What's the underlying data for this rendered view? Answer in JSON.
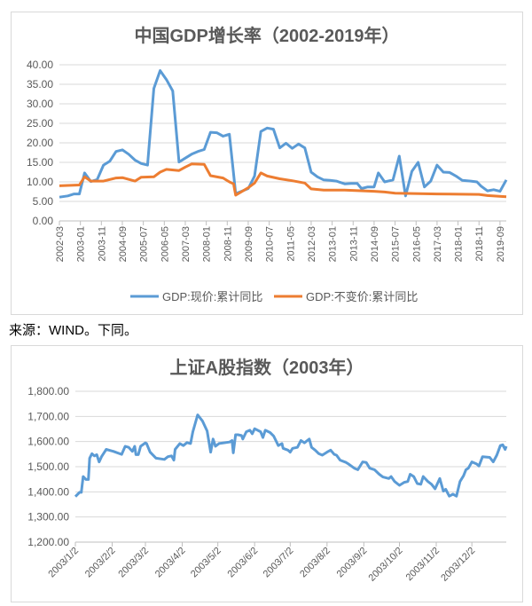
{
  "source_note": "来源：WIND。下同。",
  "chart_data": [
    {
      "type": "line",
      "title": "中国GDP增长率（2002-2019年）",
      "xlabel": "",
      "ylabel": "",
      "ylim": [
        0,
        40
      ],
      "yticks": [
        "0.00",
        "5.00",
        "10.00",
        "15.00",
        "20.00",
        "25.00",
        "30.00",
        "35.00",
        "40.00"
      ],
      "x_unit": "months since 2002-03",
      "xlim": [
        0,
        213
      ],
      "xtick_labels": [
        "2002-03",
        "2003-01",
        "2003-11",
        "2004-09",
        "2005-07",
        "2006-05",
        "2007-03",
        "2008-01",
        "2008-11",
        "2009-09",
        "2010-07",
        "2011-05",
        "2012-03",
        "2013-01",
        "2013-11",
        "2014-09",
        "2015-07",
        "2016-05",
        "2017-03",
        "2018-01",
        "2018-11",
        "2019-09"
      ],
      "grid": true,
      "legend": "bottom",
      "series": [
        {
          "name": "GDP:现价:累计同比",
          "color": "#5b9bd5",
          "points": [
            [
              0,
              6.1
            ],
            [
              4,
              6.4
            ],
            [
              7,
              6.9
            ],
            [
              9.5,
              6.9
            ],
            [
              12,
              12.3
            ],
            [
              15,
              10.1
            ],
            [
              18,
              10.6
            ],
            [
              21,
              14.3
            ],
            [
              24,
              15.3
            ],
            [
              27,
              17.8
            ],
            [
              30,
              18.2
            ],
            [
              33,
              17.1
            ],
            [
              36,
              15.6
            ],
            [
              39,
              14.7
            ],
            [
              42,
              14.3
            ],
            [
              45,
              33.9
            ],
            [
              48,
              38.5
            ],
            [
              51,
              36.2
            ],
            [
              54,
              33.3
            ],
            [
              57,
              15.1
            ],
            [
              60,
              16.1
            ],
            [
              63,
              17.1
            ],
            [
              66,
              17.8
            ],
            [
              69,
              18.3
            ],
            [
              72,
              22.7
            ],
            [
              75,
              22.6
            ],
            [
              78,
              21.7
            ],
            [
              81,
              22.2
            ],
            [
              84,
              7.0
            ],
            [
              86,
              7.4
            ],
            [
              90,
              8.3
            ],
            [
              93,
              11.5
            ],
            [
              96,
              22.9
            ],
            [
              99,
              23.8
            ],
            [
              102,
              23.5
            ],
            [
              105,
              18.7
            ],
            [
              108,
              19.9
            ],
            [
              111,
              18.6
            ],
            [
              114,
              19.7
            ],
            [
              117,
              18.7
            ],
            [
              120,
              12.5
            ],
            [
              123,
              11.3
            ],
            [
              126,
              10.5
            ],
            [
              129,
              10.4
            ],
            [
              132,
              10.2
            ],
            [
              136,
              9.5
            ],
            [
              139,
              9.6
            ],
            [
              142,
              9.6
            ],
            [
              144,
              8.3
            ],
            [
              147,
              8.7
            ],
            [
              150,
              8.7
            ],
            [
              152,
              12.3
            ],
            [
              155,
              10.0
            ],
            [
              159,
              10.5
            ],
            [
              162,
              16.6
            ],
            [
              165,
              6.4
            ],
            [
              168,
              12.7
            ],
            [
              171,
              15.0
            ],
            [
              174,
              8.7
            ],
            [
              177,
              10.2
            ],
            [
              180,
              14.3
            ],
            [
              183,
              12.5
            ],
            [
              186,
              12.4
            ],
            [
              189,
              11.5
            ],
            [
              192,
              10.4
            ],
            [
              196,
              10.2
            ],
            [
              199,
              10.0
            ],
            [
              201,
              8.9
            ],
            [
              204,
              7.7
            ],
            [
              207,
              8.0
            ],
            [
              210,
              7.6
            ],
            [
              213,
              10.5
            ]
          ]
        },
        {
          "name": "GDP:不变价:累计同比",
          "color": "#ed7d31",
          "points": [
            [
              0,
              9.0
            ],
            [
              9.5,
              9.2
            ],
            [
              12,
              11.3
            ],
            [
              15,
              10.2
            ],
            [
              21,
              10.2
            ],
            [
              27,
              11.0
            ],
            [
              30,
              11.1
            ],
            [
              36,
              10.2
            ],
            [
              39,
              11.2
            ],
            [
              45,
              11.3
            ],
            [
              48,
              12.5
            ],
            [
              51,
              13.2
            ],
            [
              57,
              12.9
            ],
            [
              60,
              13.8
            ],
            [
              63,
              14.6
            ],
            [
              69,
              14.5
            ],
            [
              72,
              11.6
            ],
            [
              78,
              11.0
            ],
            [
              81,
              10.0
            ],
            [
              83,
              9.5
            ],
            [
              84,
              6.6
            ],
            [
              90,
              8.5
            ],
            [
              93,
              9.7
            ],
            [
              96,
              12.3
            ],
            [
              99,
              11.5
            ],
            [
              105,
              10.8
            ],
            [
              111,
              10.3
            ],
            [
              117,
              9.7
            ],
            [
              120,
              8.2
            ],
            [
              126,
              7.9
            ],
            [
              136,
              7.9
            ],
            [
              150,
              7.6
            ],
            [
              155,
              7.4
            ],
            [
              160,
              7.1
            ],
            [
              180,
              6.9
            ],
            [
              200,
              6.8
            ],
            [
              204,
              6.5
            ],
            [
              213,
              6.2
            ]
          ]
        }
      ]
    },
    {
      "type": "line",
      "title": "上证A股指数（2003年）",
      "xlabel": "",
      "ylabel": "",
      "ylim": [
        1200,
        1800
      ],
      "yticks": [
        "1,200.00",
        "1,300.00",
        "1,400.00",
        "1,500.00",
        "1,600.00",
        "1,700.00",
        "1,800.00"
      ],
      "x_unit": "days since 2003-01-02",
      "xlim": [
        0,
        363
      ],
      "xtick_labels": [
        "2003/1/2",
        "2003/2/2",
        "2003/3/2",
        "2003/4/2",
        "2003/5/2",
        "2003/6/2",
        "2003/7/2",
        "2003/8/2",
        "2003/9/2",
        "2003/10/2",
        "2003/11/2",
        "2003/12/2"
      ],
      "xtick_values": [
        0,
        31,
        59,
        90,
        120,
        151,
        181,
        212,
        243,
        273,
        304,
        334
      ],
      "grid": true,
      "legend": "none",
      "series": [
        {
          "name": "上证A股指数",
          "color": "#5b9bd5",
          "points": [
            [
              0,
              1381
            ],
            [
              3.5,
              1398
            ],
            [
              5,
              1398
            ],
            [
              6.6,
              1461
            ],
            [
              9,
              1449
            ],
            [
              11,
              1449
            ],
            [
              12,
              1534
            ],
            [
              14,
              1552
            ],
            [
              16,
              1543
            ],
            [
              18,
              1548
            ],
            [
              20,
              1519
            ],
            [
              22,
              1540
            ],
            [
              26,
              1569
            ],
            [
              32,
              1561
            ],
            [
              39,
              1549
            ],
            [
              42,
              1581
            ],
            [
              45,
              1577
            ],
            [
              48,
              1561
            ],
            [
              50,
              1581
            ],
            [
              51,
              1548
            ],
            [
              53,
              1548
            ],
            [
              55,
              1581
            ],
            [
              59,
              1595
            ],
            [
              60,
              1592
            ],
            [
              63,
              1558
            ],
            [
              68,
              1534
            ],
            [
              72,
              1531
            ],
            [
              75,
              1529
            ],
            [
              78,
              1540
            ],
            [
              81,
              1543
            ],
            [
              83,
              1526
            ],
            [
              84,
              1569
            ],
            [
              88,
              1592
            ],
            [
              91,
              1584
            ],
            [
              94,
              1596
            ],
            [
              97,
              1592
            ],
            [
              99,
              1639
            ],
            [
              103,
              1706
            ],
            [
              107,
              1682
            ],
            [
              111,
              1642
            ],
            [
              114,
              1558
            ],
            [
              116,
              1610
            ],
            [
              118,
              1581
            ],
            [
              121,
              1592
            ],
            [
              130,
              1598
            ],
            [
              132,
              1604
            ],
            [
              133,
              1555
            ],
            [
              135,
              1627
            ],
            [
              137,
              1627
            ],
            [
              140,
              1624
            ],
            [
              141,
              1610
            ],
            [
              144,
              1639
            ],
            [
              147,
              1645
            ],
            [
              149,
              1631
            ],
            [
              151,
              1651
            ],
            [
              156,
              1639
            ],
            [
              158,
              1616
            ],
            [
              160,
              1645
            ],
            [
              164,
              1636
            ],
            [
              167,
              1622
            ],
            [
              171,
              1584
            ],
            [
              174,
              1592
            ],
            [
              175,
              1573
            ],
            [
              179,
              1566
            ],
            [
              181,
              1558
            ],
            [
              183,
              1573
            ],
            [
              187,
              1577
            ],
            [
              190,
              1604
            ],
            [
              193,
              1595
            ],
            [
              197,
              1610
            ],
            [
              199,
              1577
            ],
            [
              202,
              1566
            ],
            [
              205,
              1552
            ],
            [
              208,
              1546
            ],
            [
              212,
              1558
            ],
            [
              215,
              1566
            ],
            [
              218,
              1549
            ],
            [
              220,
              1546
            ],
            [
              223,
              1526
            ],
            [
              228,
              1517
            ],
            [
              230,
              1511
            ],
            [
              235,
              1494
            ],
            [
              238,
              1488
            ],
            [
              242,
              1519
            ],
            [
              245,
              1517
            ],
            [
              248,
              1494
            ],
            [
              252,
              1488
            ],
            [
              256,
              1470
            ],
            [
              259,
              1459
            ],
            [
              264,
              1453
            ],
            [
              266,
              1461
            ],
            [
              269,
              1441
            ],
            [
              273,
              1426
            ],
            [
              277,
              1438
            ],
            [
              280,
              1441
            ],
            [
              282,
              1470
            ],
            [
              285,
              1461
            ],
            [
              288,
              1433
            ],
            [
              291,
              1430
            ],
            [
              293,
              1461
            ],
            [
              297,
              1441
            ],
            [
              300,
              1430
            ],
            [
              303,
              1412
            ],
            [
              307,
              1453
            ],
            [
              310,
              1403
            ],
            [
              312,
              1410
            ],
            [
              315,
              1383
            ],
            [
              318,
              1391
            ],
            [
              321,
              1383
            ],
            [
              324,
              1441
            ],
            [
              327,
              1464
            ],
            [
              329,
              1488
            ],
            [
              331,
              1494
            ],
            [
              334,
              1519
            ],
            [
              338,
              1511
            ],
            [
              340,
              1503
            ],
            [
              343,
              1540
            ],
            [
              349,
              1537
            ],
            [
              352,
              1519
            ],
            [
              355,
              1546
            ],
            [
              358,
              1584
            ],
            [
              360,
              1587
            ],
            [
              362,
              1569
            ],
            [
              363,
              1581
            ]
          ]
        }
      ]
    }
  ]
}
